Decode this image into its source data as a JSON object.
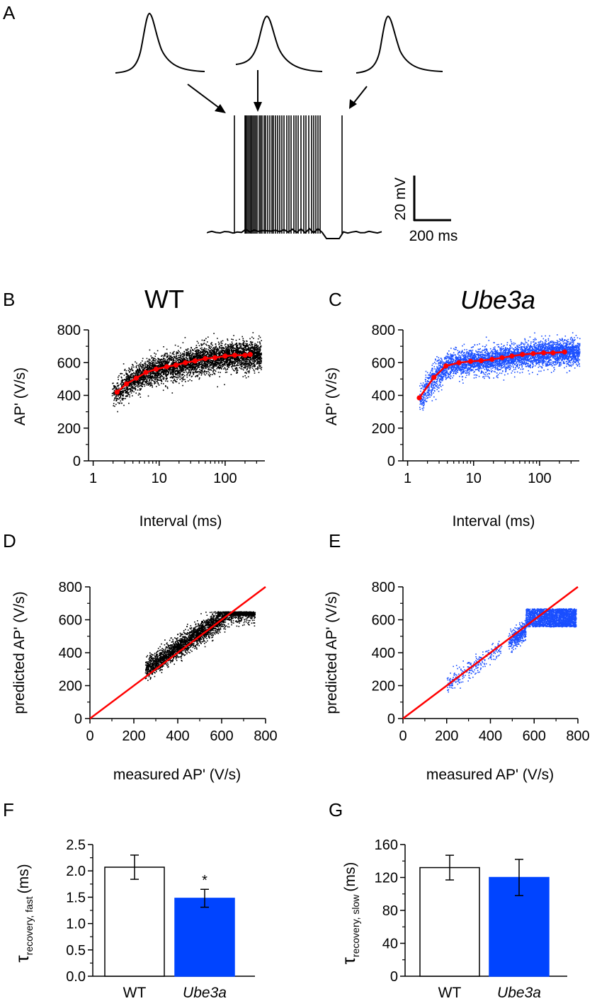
{
  "panels": {
    "A": "A",
    "B": "B",
    "C": "C",
    "D": "D",
    "E": "E",
    "F": "F",
    "G": "G"
  },
  "colors": {
    "wt": "#000000",
    "mut": "#0044ff",
    "scatter_mut": "#1a4fff",
    "fit": "#ff0000"
  },
  "trace": {
    "scalebar": {
      "voltage": "20 mV",
      "time": "200 ms"
    }
  },
  "chart_data": [
    {
      "id": "B",
      "type": "scatter",
      "title": "WT",
      "xlabel": "Interval (ms)",
      "ylabel": "AP' (V/s)",
      "xscale": "log",
      "xlim": [
        0.85,
        400
      ],
      "ylim": [
        0,
        800
      ],
      "xticks": [
        1,
        10,
        100
      ],
      "xticklabels": [
        "1",
        "10",
        "100"
      ],
      "yticks": [
        0,
        200,
        400,
        600,
        800
      ],
      "yticklabels": [
        "0",
        "200",
        "400",
        "600",
        "800"
      ],
      "cloud_xrange": [
        1.9,
        350
      ],
      "fit": {
        "x": [
          2.3,
          3.2,
          4.5,
          6.3,
          9,
          13,
          18,
          25,
          35,
          50,
          70,
          100,
          140,
          200,
          240
        ],
        "y": [
          420,
          470,
          505,
          540,
          560,
          575,
          585,
          600,
          610,
          625,
          630,
          640,
          645,
          645,
          650
        ]
      }
    },
    {
      "id": "C",
      "type": "scatter",
      "title": "Ube3a",
      "xlabel": "Interval (ms)",
      "ylabel": "AP' (V/s)",
      "xscale": "log",
      "xlim": [
        0.85,
        400
      ],
      "ylim": [
        0,
        800
      ],
      "xticks": [
        1,
        10,
        100
      ],
      "xticklabels": [
        "1",
        "10",
        "100"
      ],
      "yticks": [
        0,
        200,
        400,
        600,
        800
      ],
      "yticklabels": [
        "0",
        "200",
        "400",
        "600",
        "800"
      ],
      "cloud_xrange": [
        1.5,
        400
      ],
      "fit": {
        "x": [
          1.5,
          2.5,
          3.8,
          6,
          9,
          13,
          19,
          27,
          38,
          55,
          80,
          115,
          160,
          240
        ],
        "y": [
          385,
          510,
          580,
          600,
          608,
          612,
          620,
          630,
          640,
          650,
          655,
          660,
          660,
          665
        ]
      }
    },
    {
      "id": "D",
      "type": "scatter",
      "xlabel": "measured AP' (V/s)",
      "ylabel": "predicted AP' (V/s)",
      "xlim": [
        0,
        800
      ],
      "ylim": [
        0,
        800
      ],
      "xticks": [
        0,
        200,
        400,
        600,
        800
      ],
      "xticklabels": [
        "0",
        "200",
        "400",
        "600",
        "800"
      ],
      "yticks": [
        0,
        200,
        400,
        600,
        800
      ],
      "yticklabels": [
        "0",
        "200",
        "400",
        "600",
        "800"
      ],
      "identity_line": [
        [
          0,
          0
        ],
        [
          800,
          800
        ]
      ]
    },
    {
      "id": "E",
      "type": "scatter",
      "xlabel": "measured AP' (V/s)",
      "ylabel": "predicted AP' (V/s)",
      "xlim": [
        0,
        800
      ],
      "ylim": [
        0,
        800
      ],
      "xticks": [
        0,
        200,
        400,
        600,
        800
      ],
      "xticklabels": [
        "0",
        "200",
        "400",
        "600",
        "800"
      ],
      "yticks": [
        0,
        200,
        400,
        600,
        800
      ],
      "yticklabels": [
        "0",
        "200",
        "400",
        "600",
        "800"
      ],
      "identity_line": [
        [
          0,
          0
        ],
        [
          800,
          800
        ]
      ]
    },
    {
      "id": "F",
      "type": "bar",
      "ylabel_main": "τ",
      "ylabel_sub": "recovery, fast",
      "ylabel_unit": "(ms)",
      "ylim": [
        0,
        2.5
      ],
      "yticks": [
        0,
        0.5,
        1,
        1.5,
        2,
        2.5
      ],
      "yticklabels": [
        "0.0",
        "0.5",
        "1.0",
        "1.5",
        "2.0",
        "2.5"
      ],
      "categories": [
        "WT",
        "Ube3a"
      ],
      "values": [
        2.07,
        1.48
      ],
      "errors": [
        0.23,
        0.17
      ],
      "significance": [
        "",
        "*"
      ]
    },
    {
      "id": "G",
      "type": "bar",
      "ylabel_main": "τ",
      "ylabel_sub": "recovery, slow",
      "ylabel_unit": "(ms)",
      "ylim": [
        0,
        160
      ],
      "yticks": [
        0,
        40,
        80,
        120,
        160
      ],
      "yticklabels": [
        "0",
        "40",
        "80",
        "120",
        "160"
      ],
      "categories": [
        "WT",
        "Ube3a"
      ],
      "values": [
        132,
        120
      ],
      "errors": [
        15,
        22
      ],
      "significance": [
        "",
        ""
      ]
    }
  ]
}
